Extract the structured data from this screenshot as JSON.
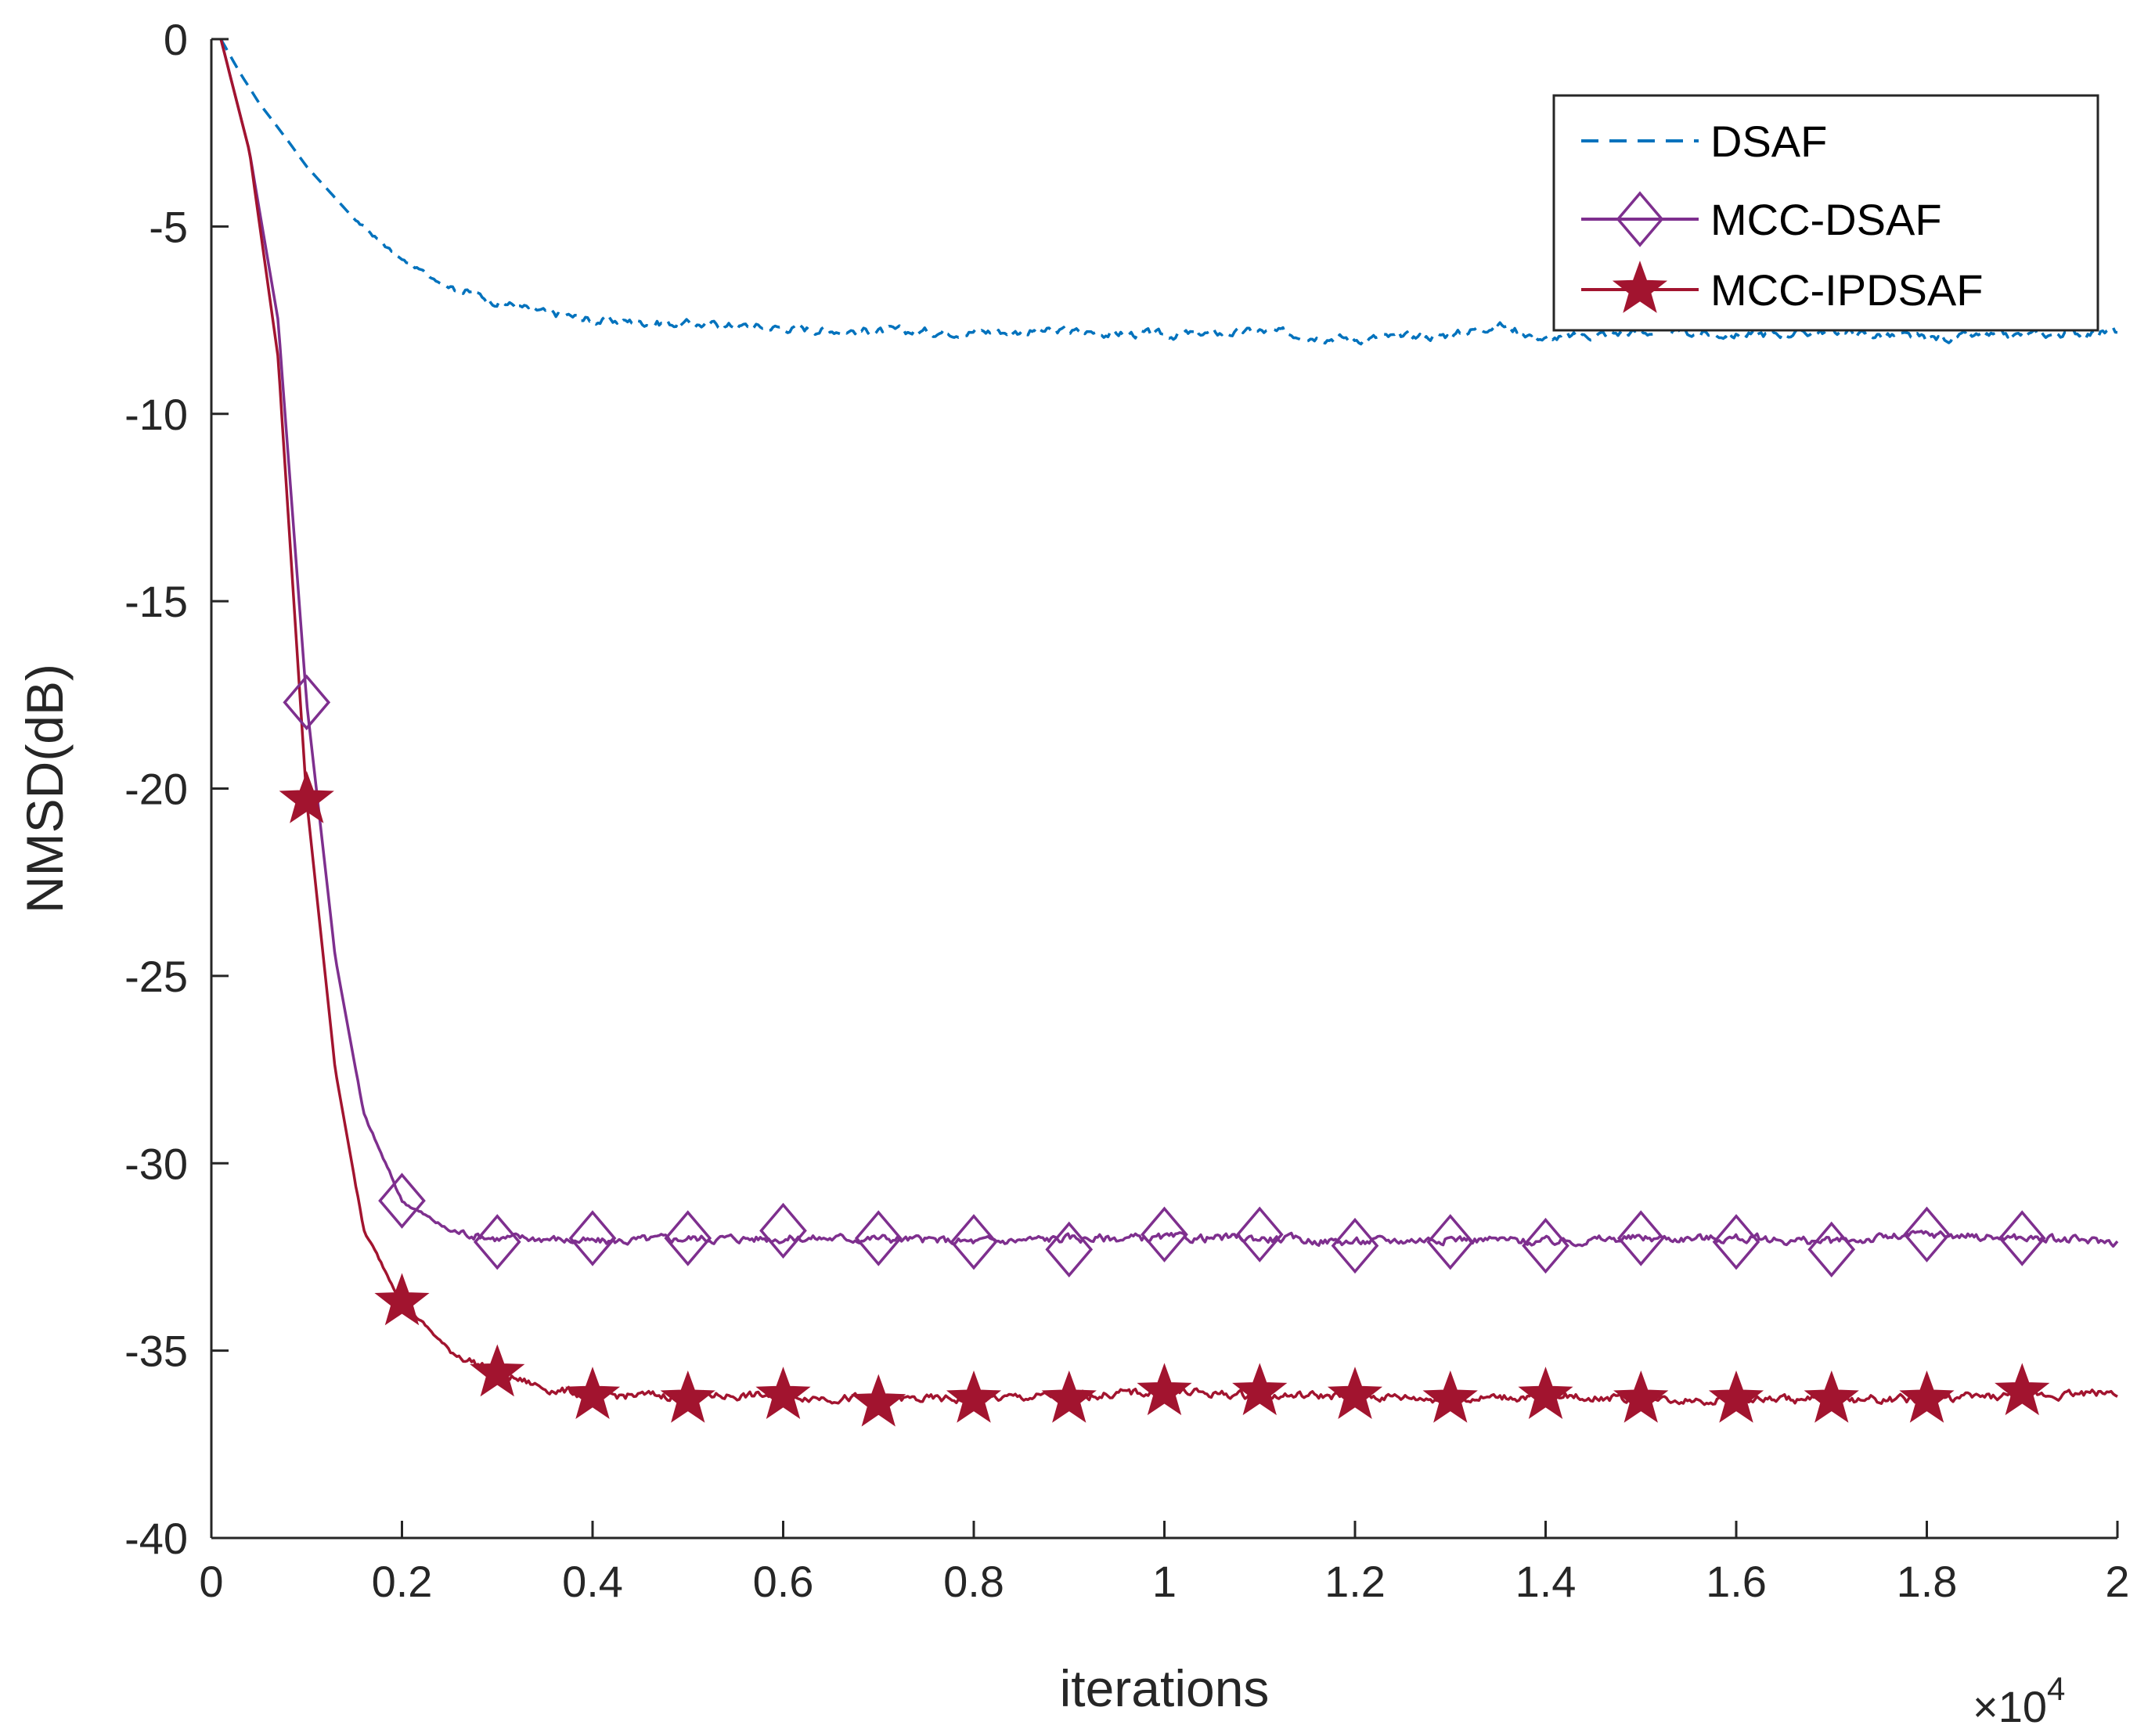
{
  "chart_data": {
    "type": "line",
    "title": "",
    "xlabel": "iterations",
    "ylabel": "NMSD(dB)",
    "x_multiplier": "×10",
    "x_multiplier_exponent": "4",
    "xlim": [
      0,
      2
    ],
    "ylim": [
      -40,
      0
    ],
    "xticks": [
      "0",
      "0.2",
      "0.4",
      "0.6",
      "0.8",
      "1",
      "1.2",
      "1.4",
      "1.6",
      "1.8",
      "2"
    ],
    "yticks": [
      "0",
      "-5",
      "-10",
      "-15",
      "-20",
      "-25",
      "-30",
      "-35",
      "-40"
    ],
    "grid": false,
    "legend_position": "top-right",
    "series": [
      {
        "name": "DSAF",
        "color": "#0072bd",
        "style": "dashed",
        "marker": "none",
        "x": [
          0.01,
          0.03,
          0.05,
          0.08,
          0.1,
          0.15,
          0.2,
          0.25,
          0.3,
          0.35,
          0.4,
          0.5,
          0.6,
          0.7,
          0.8,
          0.9,
          1.0,
          1.1,
          1.2,
          1.3,
          1.35,
          1.4,
          1.5,
          1.6,
          1.7,
          1.8,
          1.9,
          2.0
        ],
        "values": [
          0,
          -0.9,
          -1.7,
          -2.7,
          -3.4,
          -4.8,
          -5.9,
          -6.6,
          -7.0,
          -7.3,
          -7.5,
          -7.6,
          -7.7,
          -7.8,
          -7.8,
          -7.8,
          -7.9,
          -7.8,
          -8.0,
          -7.9,
          -7.6,
          -8.0,
          -7.8,
          -7.9,
          -7.8,
          -8.0,
          -7.9,
          -7.8
        ]
      },
      {
        "name": "MCC-DSAF",
        "color": "#7e2f8e",
        "style": "solid",
        "marker": "diamond",
        "x": [
          0.01,
          0.04,
          0.07,
          0.1,
          0.13,
          0.16,
          0.2,
          0.25,
          0.3,
          0.35,
          0.4,
          0.5,
          0.6,
          0.7,
          0.8,
          0.9,
          1.0,
          1.1,
          1.2,
          1.3,
          1.4,
          1.5,
          1.6,
          1.7,
          1.8,
          1.9,
          2.0
        ],
        "values": [
          0,
          -3.0,
          -7.5,
          -17.7,
          -24.5,
          -28.7,
          -31.0,
          -31.8,
          -32.0,
          -32.0,
          -32.1,
          -32.0,
          -32.0,
          -32.0,
          -32.1,
          -32.0,
          -32.0,
          -32.0,
          -32.1,
          -32.0,
          -32.1,
          -32.0,
          -32.0,
          -32.1,
          -31.9,
          -32.0,
          -32.1
        ],
        "marker_x": [
          0.1,
          0.2,
          0.3,
          0.4,
          0.5,
          0.6,
          0.7,
          0.8,
          0.9,
          1.0,
          1.1,
          1.2,
          1.3,
          1.4,
          1.5,
          1.6,
          1.7,
          1.8,
          1.9
        ],
        "marker_values": [
          -17.7,
          -31.0,
          -32.1,
          -32.0,
          -32.0,
          -31.8,
          -32.0,
          -32.1,
          -32.3,
          -31.9,
          -31.9,
          -32.2,
          -32.1,
          -32.2,
          -32.0,
          -32.1,
          -32.3,
          -31.9,
          -32.0
        ]
      },
      {
        "name": "MCC-IPDSAF",
        "color": "#a2142f",
        "style": "solid",
        "marker": "star",
        "x": [
          0.01,
          0.04,
          0.07,
          0.1,
          0.13,
          0.16,
          0.2,
          0.25,
          0.3,
          0.35,
          0.4,
          0.5,
          0.6,
          0.7,
          0.8,
          0.9,
          1.0,
          1.1,
          1.2,
          1.3,
          1.4,
          1.5,
          1.6,
          1.7,
          1.8,
          1.9,
          2.0
        ],
        "values": [
          0,
          -3.0,
          -8.5,
          -20.3,
          -27.5,
          -31.8,
          -33.7,
          -35.0,
          -35.6,
          -36.0,
          -36.2,
          -36.2,
          -36.2,
          -36.3,
          -36.3,
          -36.2,
          -36.1,
          -36.2,
          -36.2,
          -36.3,
          -36.2,
          -36.3,
          -36.3,
          -36.3,
          -36.3,
          -36.2,
          -36.1
        ],
        "marker_x": [
          0.1,
          0.2,
          0.3,
          0.4,
          0.5,
          0.6,
          0.7,
          0.8,
          0.9,
          1.0,
          1.1,
          1.2,
          1.3,
          1.4,
          1.5,
          1.6,
          1.7,
          1.8,
          1.9
        ],
        "marker_values": [
          -20.3,
          -33.7,
          -35.6,
          -36.2,
          -36.3,
          -36.2,
          -36.4,
          -36.3,
          -36.3,
          -36.1,
          -36.1,
          -36.2,
          -36.3,
          -36.2,
          -36.3,
          -36.3,
          -36.3,
          -36.3,
          -36.1
        ]
      }
    ]
  }
}
